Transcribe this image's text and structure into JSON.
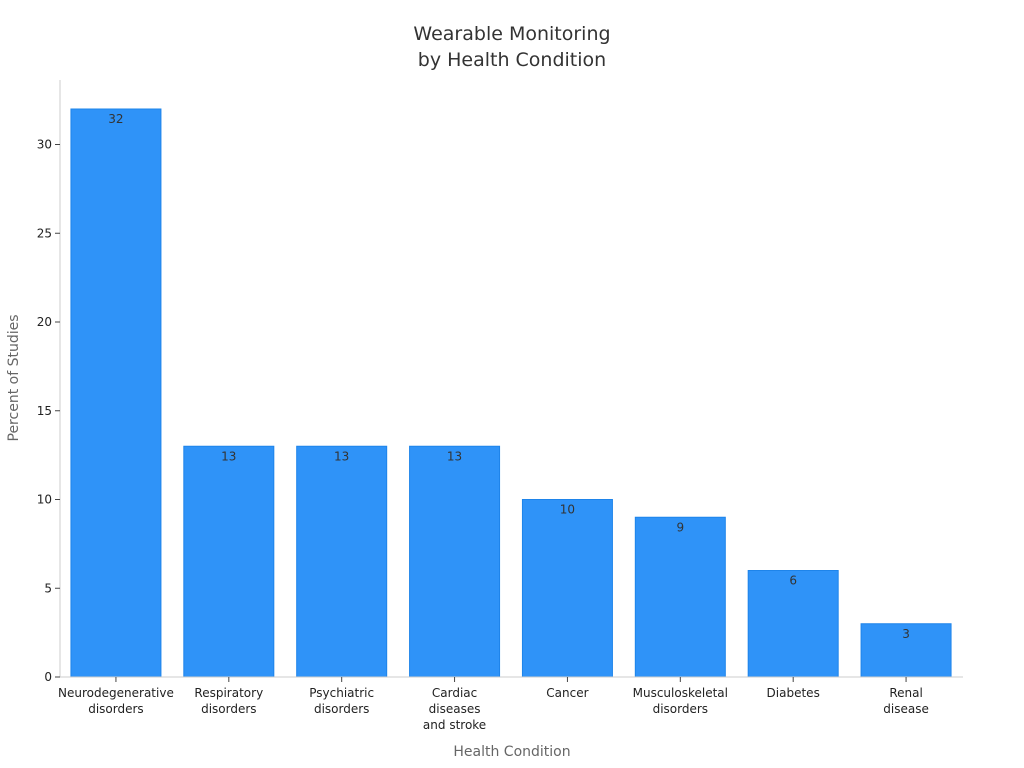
{
  "chart_data": {
    "type": "bar",
    "title": [
      "Wearable Monitoring",
      "by Health Condition"
    ],
    "xlabel": "Health Condition",
    "ylabel": "Percent of Studies",
    "ylim": [
      0,
      33
    ],
    "yticks": [
      0,
      5,
      10,
      15,
      20,
      25,
      30
    ],
    "categories": [
      [
        "Neurodegenerative",
        "disorders"
      ],
      [
        "Respiratory",
        "disorders"
      ],
      [
        "Psychiatric",
        "disorders"
      ],
      [
        "Cardiac",
        "diseases",
        "and stroke"
      ],
      [
        "Cancer"
      ],
      [
        "Musculoskeletal",
        "disorders"
      ],
      [
        "Diabetes"
      ],
      [
        "Renal",
        "disease"
      ]
    ],
    "values": [
      32,
      13,
      13,
      13,
      10,
      9,
      6,
      3
    ],
    "bar_color": "#2f93f8",
    "grid": false,
    "legend": "none"
  }
}
